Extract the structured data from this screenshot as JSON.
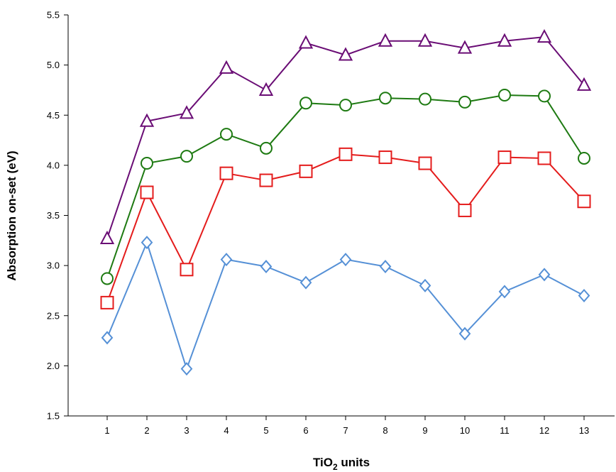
{
  "chart_data": {
    "type": "line",
    "title": "",
    "xlabel": "TiO",
    "xlabel_subscript": "2",
    "xlabel_suffix": " units",
    "ylabel": "Absorption on-set (eV)",
    "ylim": [
      1.5,
      5.5
    ],
    "yticks": [
      1.5,
      2.0,
      2.5,
      3.0,
      3.5,
      4.0,
      4.5,
      5.0,
      5.5
    ],
    "ytick_labels": [
      "1.5",
      "2.0",
      "2.5",
      "3.0",
      "3.5",
      "4.0",
      "4.5",
      "5.0",
      "5.5"
    ],
    "x": [
      1,
      2,
      3,
      4,
      5,
      6,
      7,
      8,
      9,
      10,
      11,
      12,
      13
    ],
    "xtick_labels": [
      "1",
      "2",
      "3",
      "4",
      "5",
      "6",
      "7",
      "8",
      "9",
      "10",
      "11",
      "12",
      "13"
    ],
    "grid": false,
    "legend": "none",
    "series": [
      {
        "color": "#6a0d75",
        "marker": "triangle",
        "values": [
          3.27,
          4.44,
          4.52,
          4.97,
          4.75,
          5.22,
          5.1,
          5.24,
          5.24,
          5.17,
          5.24,
          5.28,
          4.8
        ]
      },
      {
        "color": "#1e7a12",
        "marker": "circle",
        "values": [
          2.87,
          4.02,
          4.09,
          4.31,
          4.17,
          4.62,
          4.6,
          4.67,
          4.66,
          4.63,
          4.7,
          4.69,
          4.07
        ]
      },
      {
        "color": "#e41c1c",
        "marker": "square",
        "values": [
          2.63,
          3.73,
          2.96,
          3.92,
          3.85,
          3.94,
          4.11,
          4.08,
          4.02,
          3.55,
          4.08,
          4.07,
          3.64
        ]
      },
      {
        "color": "#5590d6",
        "marker": "diamond",
        "values": [
          2.28,
          3.23,
          1.97,
          3.06,
          2.99,
          2.83,
          3.06,
          2.99,
          2.8,
          2.32,
          2.74,
          2.91,
          2.7
        ]
      }
    ]
  }
}
